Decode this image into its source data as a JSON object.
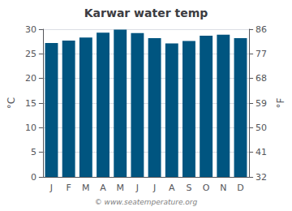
{
  "chart_data": {
    "type": "bar",
    "title": "Karwar water temp",
    "categories": [
      "J",
      "F",
      "M",
      "A",
      "M",
      "J",
      "J",
      "A",
      "S",
      "O",
      "N",
      "D"
    ],
    "values": [
      27.2,
      27.7,
      28.3,
      29.3,
      29.9,
      29.2,
      28.2,
      27.1,
      27.6,
      28.7,
      28.9,
      28.2
    ],
    "color": "#005580",
    "ylabel": "°C",
    "ylim": [
      0,
      30
    ],
    "yticks": [
      0,
      5,
      10,
      15,
      20,
      25,
      30
    ],
    "y2label": "°F",
    "y2lim": [
      32,
      86
    ],
    "y2ticks": [
      32,
      41,
      50,
      59,
      68,
      77,
      86
    ],
    "annotations": [
      "© www.seatemperature.org"
    ],
    "grid": true
  }
}
